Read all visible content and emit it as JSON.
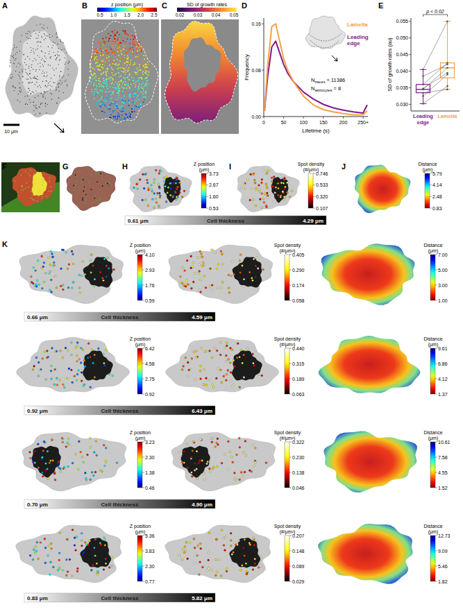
{
  "figure": {
    "panel_labels": [
      "A",
      "B",
      "C",
      "D",
      "E",
      "F",
      "G",
      "H",
      "I",
      "J",
      "K"
    ],
    "scale_bar": "10 μm",
    "colorbar_b": {
      "title": "z position (μm)",
      "ticks": [
        "0.5",
        "1.0",
        "1.5",
        "2.0",
        "2.5"
      ]
    },
    "colorbar_c": {
      "title": "SD of growth rates",
      "ticks": [
        "0.02",
        "0.03",
        "0.04",
        "0.05"
      ]
    },
    "rows": [
      {
        "z": {
          "title": [
            "Z position",
            "(μm)"
          ],
          "ticks": [
            "0.53",
            "1.60",
            "2.67",
            "3.73"
          ]
        },
        "density": {
          "title": [
            "Spot density",
            "(#/μm²)"
          ],
          "ticks": [
            "0.107",
            "0.320",
            "0.533",
            "0.746"
          ]
        },
        "distance": {
          "title": [
            "Distance",
            "(μm)"
          ],
          "ticks": [
            "0.83",
            "2.48",
            "4.14",
            "5.79"
          ]
        },
        "thickness": {
          "min": "0.61 μm",
          "label": "Cell thickness",
          "max": "4.29 μm"
        }
      },
      {
        "z": {
          "title": [
            "Z position",
            "(μm)"
          ],
          "ticks": [
            "0.59",
            "1.76",
            "2.93",
            "4.10"
          ]
        },
        "density": {
          "title": [
            "Spot density",
            "(#/μm²)"
          ],
          "ticks": [
            "0.058",
            "0.174",
            "0.290",
            "0.405"
          ]
        },
        "distance": {
          "title": [
            "Distance",
            "(μm)"
          ],
          "ticks": [
            "1.00",
            "3.00",
            "5.00",
            "7.00"
          ]
        },
        "thickness": {
          "min": "0.66 μm",
          "label": "Cell thickness",
          "max": "4.59 μm"
        }
      },
      {
        "z": {
          "title": [
            "Z position",
            "(μm)"
          ],
          "ticks": [
            "0.92",
            "2.75",
            "4.58",
            "6.42"
          ]
        },
        "density": {
          "title": [
            "Spot density",
            "(#/μm²)"
          ],
          "ticks": [
            "0.063",
            "0.189",
            "0.315",
            "0.440"
          ]
        },
        "distance": {
          "title": [
            "Distance",
            "(μm)"
          ],
          "ticks": [
            "1.37",
            "4.12",
            "6.86",
            "9.61"
          ]
        },
        "thickness": {
          "min": "0.92 μm",
          "label": "Cell thickness",
          "max": "6.43 μm"
        }
      },
      {
        "z": {
          "title": [
            "Z position",
            "(μm)"
          ],
          "ticks": [
            "0.46",
            "1.38",
            "2.30",
            "3.23"
          ]
        },
        "density": {
          "title": [
            "Spot density",
            "(#/μm²)"
          ],
          "ticks": [
            "0.046",
            "0.138",
            "0.230",
            "0.322"
          ]
        },
        "distance": {
          "title": [
            "Distance",
            "(μm)"
          ],
          "ticks": [
            "1.52",
            "4.55",
            "7.58",
            "10.61"
          ]
        },
        "thickness": {
          "min": "0.70 μm",
          "label": "Cell thickness",
          "max": "4.90 μm"
        }
      },
      {
        "z": {
          "title": [
            "Z position",
            "(μm)"
          ],
          "ticks": [
            "0.77",
            "2.30",
            "3.83",
            "5.36"
          ]
        },
        "density": {
          "title": [
            "Spot density",
            "(#/μm²)"
          ],
          "ticks": [
            "0.029",
            "0.089",
            "0.148",
            "0.207"
          ]
        },
        "distance": {
          "title": [
            "Distance",
            "(μm)"
          ],
          "ticks": [
            "1.82",
            "5.46",
            "9.09",
            "12.73"
          ]
        },
        "thickness": {
          "min": "0.83 μm",
          "label": "Cell thickness",
          "max": "5.82 μm"
        }
      }
    ]
  },
  "chart_data": [
    {
      "type": "line",
      "x_label": "Lifetime (s)",
      "y_label": "Frequency",
      "x": [
        2,
        10,
        20,
        30,
        40,
        50,
        60,
        75,
        100,
        125,
        150,
        175,
        200,
        225,
        250,
        260
      ],
      "series": [
        {
          "name": "Leading edge",
          "color": "#80198c",
          "values": [
            0.01,
            0.07,
            0.12,
            0.13,
            0.11,
            0.09,
            0.075,
            0.06,
            0.042,
            0.03,
            0.021,
            0.015,
            0.011,
            0.008,
            0.006,
            0.02
          ]
        },
        {
          "name": "Lamella",
          "color": "#f5a142",
          "values": [
            0.01,
            0.09,
            0.155,
            0.16,
            0.13,
            0.1,
            0.08,
            0.06,
            0.035,
            0.02,
            0.012,
            0.008,
            0.005,
            0.003,
            0.003,
            0.01
          ]
        }
      ],
      "xlim": [
        0,
        262
      ],
      "xticks": [
        0,
        50,
        100,
        150,
        200,
        {
          "value": 250,
          "label": "250+"
        }
      ],
      "ylim": [
        0,
        0.17
      ],
      "yticks": [
        {
          "value": 0,
          "label": "0.00"
        },
        0.08,
        0.16
      ],
      "annotations": [
        {
          "main": "N",
          "sub": "traces",
          "rest": " = 11386"
        },
        {
          "main": "N",
          "sub": "astrocytes",
          "rest": " = 8"
        }
      ]
    },
    {
      "type": "box",
      "y_label": "SD of growth rates (au)",
      "categories": [
        "Leading edge",
        "Lamella"
      ],
      "colors": [
        "#80198c",
        "#f5a142"
      ],
      "boxes": [
        {
          "whisker_low": 0.0302,
          "q1": 0.0335,
          "median": 0.0345,
          "q3": 0.036,
          "whisker_high": 0.0405
        },
        {
          "whisker_low": 0.0345,
          "q1": 0.038,
          "median": 0.041,
          "q3": 0.0425,
          "whisker_high": 0.055
        }
      ],
      "points": [
        [
          0.0302,
          0.0325,
          0.0335,
          0.0345,
          0.0348,
          0.036,
          0.0385,
          0.0405
        ],
        [
          0.0355,
          0.039,
          0.0345,
          0.041,
          0.0395,
          0.0425,
          0.042,
          0.055
        ]
      ],
      "ylim": [
        0.028,
        0.056
      ],
      "yticks": [
        {
          "value": 0.03,
          "label": "0.030"
        },
        0.035,
        {
          "value": 0.04,
          "label": "0.040"
        },
        0.045,
        {
          "value": 0.05,
          "label": "0.050"
        },
        0.055
      ],
      "annotations": [
        "p < 0.02"
      ]
    }
  ]
}
